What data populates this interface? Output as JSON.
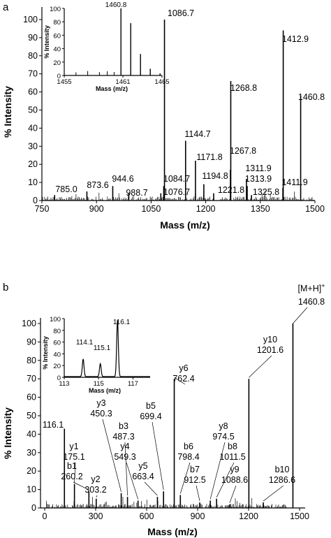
{
  "chart_data": [
    {
      "type": "line",
      "panel_label": "a",
      "xlabel": "Mass (m/z)",
      "ylabel": "% Intensity",
      "xlim": [
        750,
        1500
      ],
      "ylim": [
        0,
        105
      ],
      "x_ticks": [
        "750",
        "900",
        "1050",
        "1200",
        "1350",
        "1500"
      ],
      "y_ticks": [
        "0",
        "10",
        "20",
        "30",
        "40",
        "50",
        "60",
        "70",
        "80",
        "90",
        "100"
      ],
      "peaks": [
        {
          "x": 785.0,
          "y": 3,
          "label": "785.0"
        },
        {
          "x": 873.6,
          "y": 5,
          "label": "873.6"
        },
        {
          "x": 944.6,
          "y": 8,
          "label": "944.6"
        },
        {
          "x": 988.7,
          "y": 4,
          "label": "988.7"
        },
        {
          "x": 1076.7,
          "y": 4,
          "label": "1076.7"
        },
        {
          "x": 1084.7,
          "y": 8,
          "label": "1084.7"
        },
        {
          "x": 1086.7,
          "y": 100,
          "label": "1086.7"
        },
        {
          "x": 1144.7,
          "y": 33,
          "label": "1144.7"
        },
        {
          "x": 1171.8,
          "y": 22,
          "label": "1171.8"
        },
        {
          "x": 1194.8,
          "y": 9,
          "label": "1194.8"
        },
        {
          "x": 1221.8,
          "y": 4,
          "label": "1221.8"
        },
        {
          "x": 1267.8,
          "y": 17,
          "label": "1267.8"
        },
        {
          "x": 1268.8,
          "y": 66,
          "label": "1268.8"
        },
        {
          "x": 1311.9,
          "y": 12,
          "label": "1311.9"
        },
        {
          "x": 1313.9,
          "y": 8,
          "label": "1313.9"
        },
        {
          "x": 1325.8,
          "y": 3,
          "label": "1325.8"
        },
        {
          "x": 1411.9,
          "y": 7,
          "label": "1411.9"
        },
        {
          "x": 1412.9,
          "y": 94,
          "label": "1412.9"
        },
        {
          "x": 1460.8,
          "y": 58,
          "label": "1460.8"
        }
      ],
      "inset": {
        "xlabel": "Mass (m/z)",
        "ylabel": "% Intensity",
        "xlim": [
          1455,
          1465
        ],
        "ylim": [
          0,
          100
        ],
        "x_ticks": [
          "1455",
          "1461",
          "1465"
        ],
        "y_ticks": [
          "0",
          "20",
          "40",
          "60",
          "80",
          "100"
        ],
        "peaks": [
          {
            "x": 1460.8,
            "y": 100,
            "label": "1460.8"
          },
          {
            "x": 1461.8,
            "y": 78
          },
          {
            "x": 1462.8,
            "y": 32
          },
          {
            "x": 1463.8,
            "y": 10
          },
          {
            "x": 1464.8,
            "y": 3
          }
        ]
      }
    },
    {
      "type": "line",
      "panel_label": "b",
      "xlabel": "Mass (m/z)",
      "ylabel": "% Intensity",
      "xlim": [
        0,
        1500
      ],
      "ylim": [
        0,
        105
      ],
      "x_ticks": [
        "0",
        "300",
        "600",
        "900",
        "1200",
        "1500"
      ],
      "y_ticks": [
        "0",
        "10",
        "20",
        "30",
        "40",
        "50",
        "60",
        "70",
        "80",
        "90",
        "100"
      ],
      "peaks": [
        {
          "x": 116.1,
          "y": 43,
          "label": "116.1"
        },
        {
          "x": 175.1,
          "y": 13,
          "label": "y1 175.1"
        },
        {
          "x": 260.2,
          "y": 9,
          "label": "b1 260.2"
        },
        {
          "x": 303.2,
          "y": 5,
          "label": "y2 303.2"
        },
        {
          "x": 450.3,
          "y": 8,
          "label": "y3 450.3"
        },
        {
          "x": 487.3,
          "y": 6,
          "label": "b3 487.3"
        },
        {
          "x": 549.3,
          "y": 4,
          "label": "y4 549.3"
        },
        {
          "x": 663.4,
          "y": 6,
          "label": "y5 663.4"
        },
        {
          "x": 699.4,
          "y": 9,
          "label": "b5 699.4"
        },
        {
          "x": 762.4,
          "y": 70,
          "label": "y6 762.4"
        },
        {
          "x": 798.4,
          "y": 7,
          "label": "b6 798.4"
        },
        {
          "x": 912.5,
          "y": 3,
          "label": "b7 912.5"
        },
        {
          "x": 974.5,
          "y": 4,
          "label": "y8 974.5"
        },
        {
          "x": 1011.5,
          "y": 5,
          "label": "b8 1011.5"
        },
        {
          "x": 1088.6,
          "y": 2,
          "label": "y9 1088.6"
        },
        {
          "x": 1201.6,
          "y": 70,
          "label": "y10 1201.6"
        },
        {
          "x": 1286.6,
          "y": 3,
          "label": "b10 1286.6"
        },
        {
          "x": 1460.8,
          "y": 100,
          "label": "[M+H]+ 1460.8"
        }
      ],
      "inset": {
        "xlabel": "Mass (m/z)",
        "ylabel": "% Intensity",
        "xlim": [
          113,
          118
        ],
        "ylim": [
          0,
          100
        ],
        "x_ticks": [
          "113",
          "115",
          "117"
        ],
        "y_ticks": [
          "0",
          "20",
          "40",
          "60",
          "80",
          "100"
        ],
        "peaks": [
          {
            "x": 114.1,
            "y": 30,
            "label": "114.1"
          },
          {
            "x": 115.1,
            "y": 22,
            "label": "115.1"
          },
          {
            "x": 116.1,
            "y": 96,
            "label": "116.1"
          }
        ]
      }
    }
  ],
  "labels": {
    "panel_a": "a",
    "panel_b": "b",
    "a_xlabel": "Mass (m/z)",
    "a_ylabel": "% Intensity",
    "a_inset_xlabel": "Mass (m/z)",
    "a_inset_ylabel": "% Intensity",
    "a_inset_peak": "1460.8",
    "b_xlabel": "Mass (m/z)",
    "b_ylabel": "% Intensity",
    "b_inset_xlabel": "Mass (m/z)",
    "b_inset_ylabel": "% Intensity",
    "b_inset_p1": "114.1",
    "b_inset_p2": "115.1",
    "b_inset_p3": "116.1",
    "mh_label": "[M+H]",
    "mh_sup": "+",
    "mh_value": "1460.8"
  }
}
